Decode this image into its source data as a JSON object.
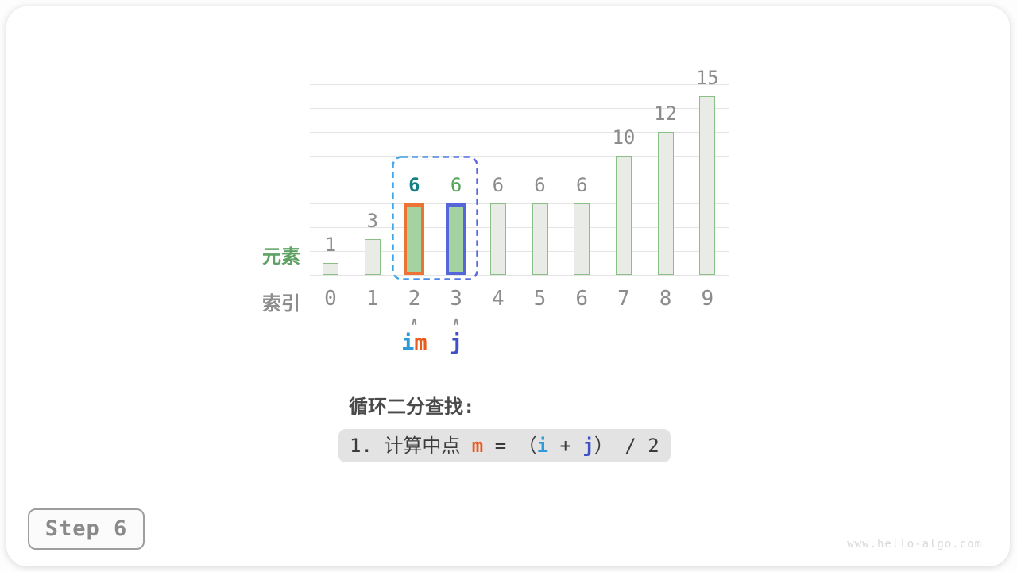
{
  "page": {
    "step_label": "Step 6",
    "watermark": "www.hello-algo.com"
  },
  "colors": {
    "card_bg": "#ffffff",
    "grid": "#e4e4e4",
    "bar_fill": "#e9ebe6",
    "bar_border": "#8abf85",
    "bar_fill_active": "#a5d2a1",
    "orange": "#ed7334",
    "blue": "#5566d8",
    "teal": "#13807f",
    "green": "#55a45c",
    "green_label": "#5fa163",
    "gray_label": "#8c8c8c",
    "text_dark": "#4a4a4a",
    "formula_text": "#3b3b3b",
    "m_orange": "#e95a1f",
    "i_blue": "#2e9bd9",
    "j_blue": "#3d50c8",
    "dash_left": "#3fa7e9",
    "dash_right": "#5a67df",
    "formula_bg": "#e3e3e3",
    "step_border": "#9e9e9e",
    "step_text": "#8a8a8a",
    "step_bg": "#fbfbfb",
    "watermark": "#d9d9d9"
  },
  "chart_data": {
    "type": "bar",
    "title": "",
    "categories": [
      "0",
      "1",
      "2",
      "3",
      "4",
      "5",
      "6",
      "7",
      "8",
      "9"
    ],
    "values": [
      1,
      3,
      6,
      6,
      6,
      6,
      6,
      10,
      12,
      15
    ],
    "ylim": [
      0,
      16
    ],
    "grid_step": 2,
    "row_labels": {
      "elements": "元素",
      "indices": "索引"
    },
    "highlights": [
      {
        "index": 2,
        "border": "orange"
      },
      {
        "index": 3,
        "border": "blue"
      }
    ],
    "value_label_styles": {
      "2": "teal",
      "3": "green"
    },
    "dashed_range": {
      "from_index": 2,
      "to_index": 3
    }
  },
  "pointers": [
    {
      "index": 2,
      "caret": "∧",
      "letters": [
        {
          "t": "i",
          "color": "i_blue"
        },
        {
          "t": "m",
          "color": "m_orange"
        }
      ]
    },
    {
      "index": 3,
      "caret": "∧",
      "letters": [
        {
          "t": "j",
          "color": "j_blue"
        }
      ]
    }
  ],
  "caption": {
    "title": "循环二分查找:",
    "formula_parts": [
      {
        "t": "1. 计算中点 "
      },
      {
        "t": "m",
        "color": "m_orange",
        "bold": true
      },
      {
        "t": " = （"
      },
      {
        "t": "i",
        "color": "i_blue",
        "bold": true
      },
      {
        "t": " + "
      },
      {
        "t": "j",
        "color": "j_blue",
        "bold": true
      },
      {
        "t": "） / 2"
      }
    ]
  }
}
